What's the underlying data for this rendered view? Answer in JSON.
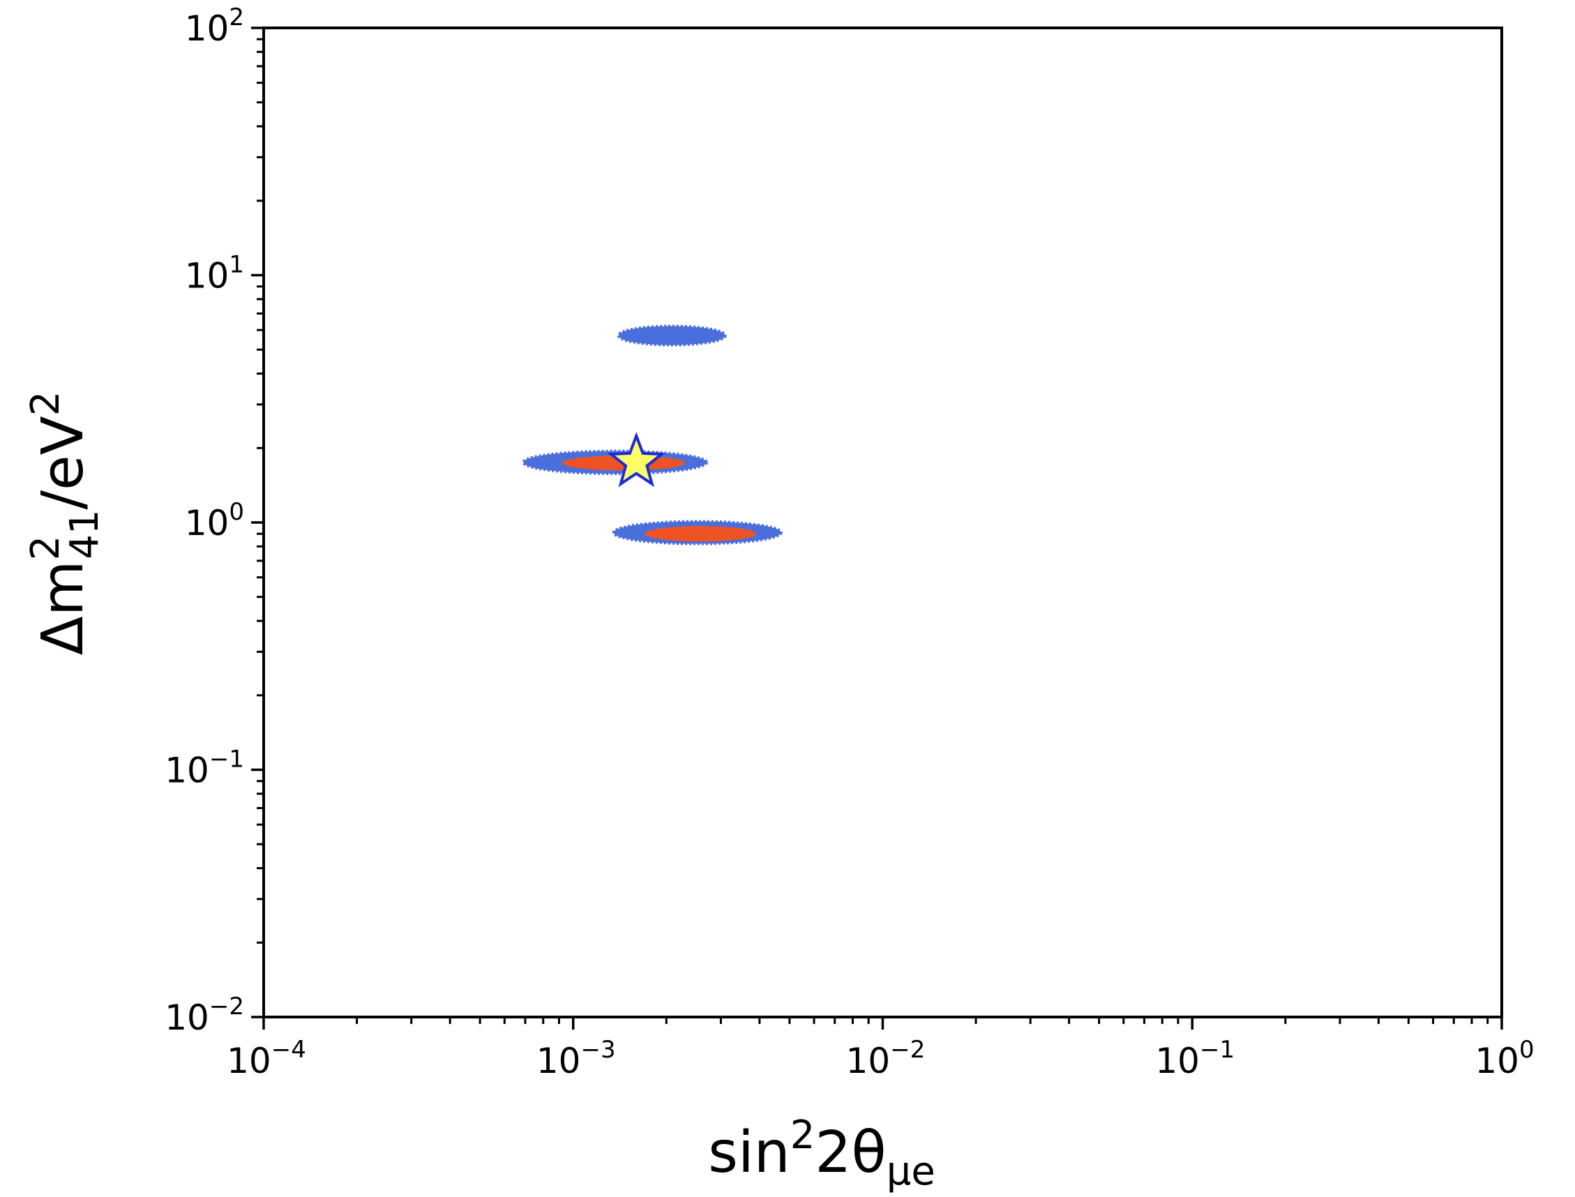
{
  "chart_data": {
    "type": "contour",
    "xscale": "log",
    "yscale": "log",
    "xlim": [
      0.0001,
      1
    ],
    "ylim": [
      0.01,
      100
    ],
    "grid": false,
    "legend": "none",
    "x_ticks": [
      {
        "value": 0.0001,
        "base": "10",
        "exp": "−4"
      },
      {
        "value": 0.001,
        "base": "10",
        "exp": "−3"
      },
      {
        "value": 0.01,
        "base": "10",
        "exp": "−2"
      },
      {
        "value": 0.1,
        "base": "10",
        "exp": "−1"
      },
      {
        "value": 1,
        "base": "10",
        "exp": "0"
      }
    ],
    "y_ticks": [
      {
        "value": 0.01,
        "base": "10",
        "exp": "−2"
      },
      {
        "value": 0.1,
        "base": "10",
        "exp": "−1"
      },
      {
        "value": 1,
        "base": "10",
        "exp": "0"
      },
      {
        "value": 10,
        "base": "10",
        "exp": "1"
      },
      {
        "value": 100,
        "base": "10",
        "exp": "2"
      }
    ],
    "xlabel": {
      "pre": "sin",
      "sup": "2",
      "mid": "2θ",
      "sub": "μe"
    },
    "ylabel": {
      "pre": "Δm",
      "sup": "2",
      "sub": "41",
      "post": "/eV",
      "sup2": "2"
    },
    "colors": {
      "outer_region": "#4a6edb",
      "inner_region": "#ee5324",
      "best_fit_fill": "#ffff66",
      "best_fit_edge": "#1c2ad8"
    },
    "regions": [
      {
        "level": "outer",
        "color": "#4a6edb",
        "x_range": [
          0.0014,
          0.0031
        ],
        "y_center": 5.7,
        "y_range": [
          5.2,
          6.2
        ]
      },
      {
        "level": "outer",
        "color": "#4a6edb",
        "x_range": [
          0.00069,
          0.0027
        ],
        "y_center": 1.75,
        "y_range": [
          1.58,
          1.95
        ]
      },
      {
        "level": "outer",
        "color": "#4a6edb",
        "x_range": [
          0.00135,
          0.0047
        ],
        "y_center": 0.91,
        "y_range": [
          0.82,
          1.01
        ]
      },
      {
        "level": "inner",
        "color": "#ee5324",
        "x_range": [
          0.00092,
          0.0023
        ],
        "y_center": 1.74,
        "y_range": [
          1.62,
          1.86
        ]
      },
      {
        "level": "inner",
        "color": "#ee5324",
        "x_range": [
          0.0017,
          0.0039
        ],
        "y_center": 0.9,
        "y_range": [
          0.84,
          0.97
        ]
      }
    ],
    "best_fit": {
      "x": 0.0016,
      "y": 1.75,
      "marker": "star"
    }
  }
}
